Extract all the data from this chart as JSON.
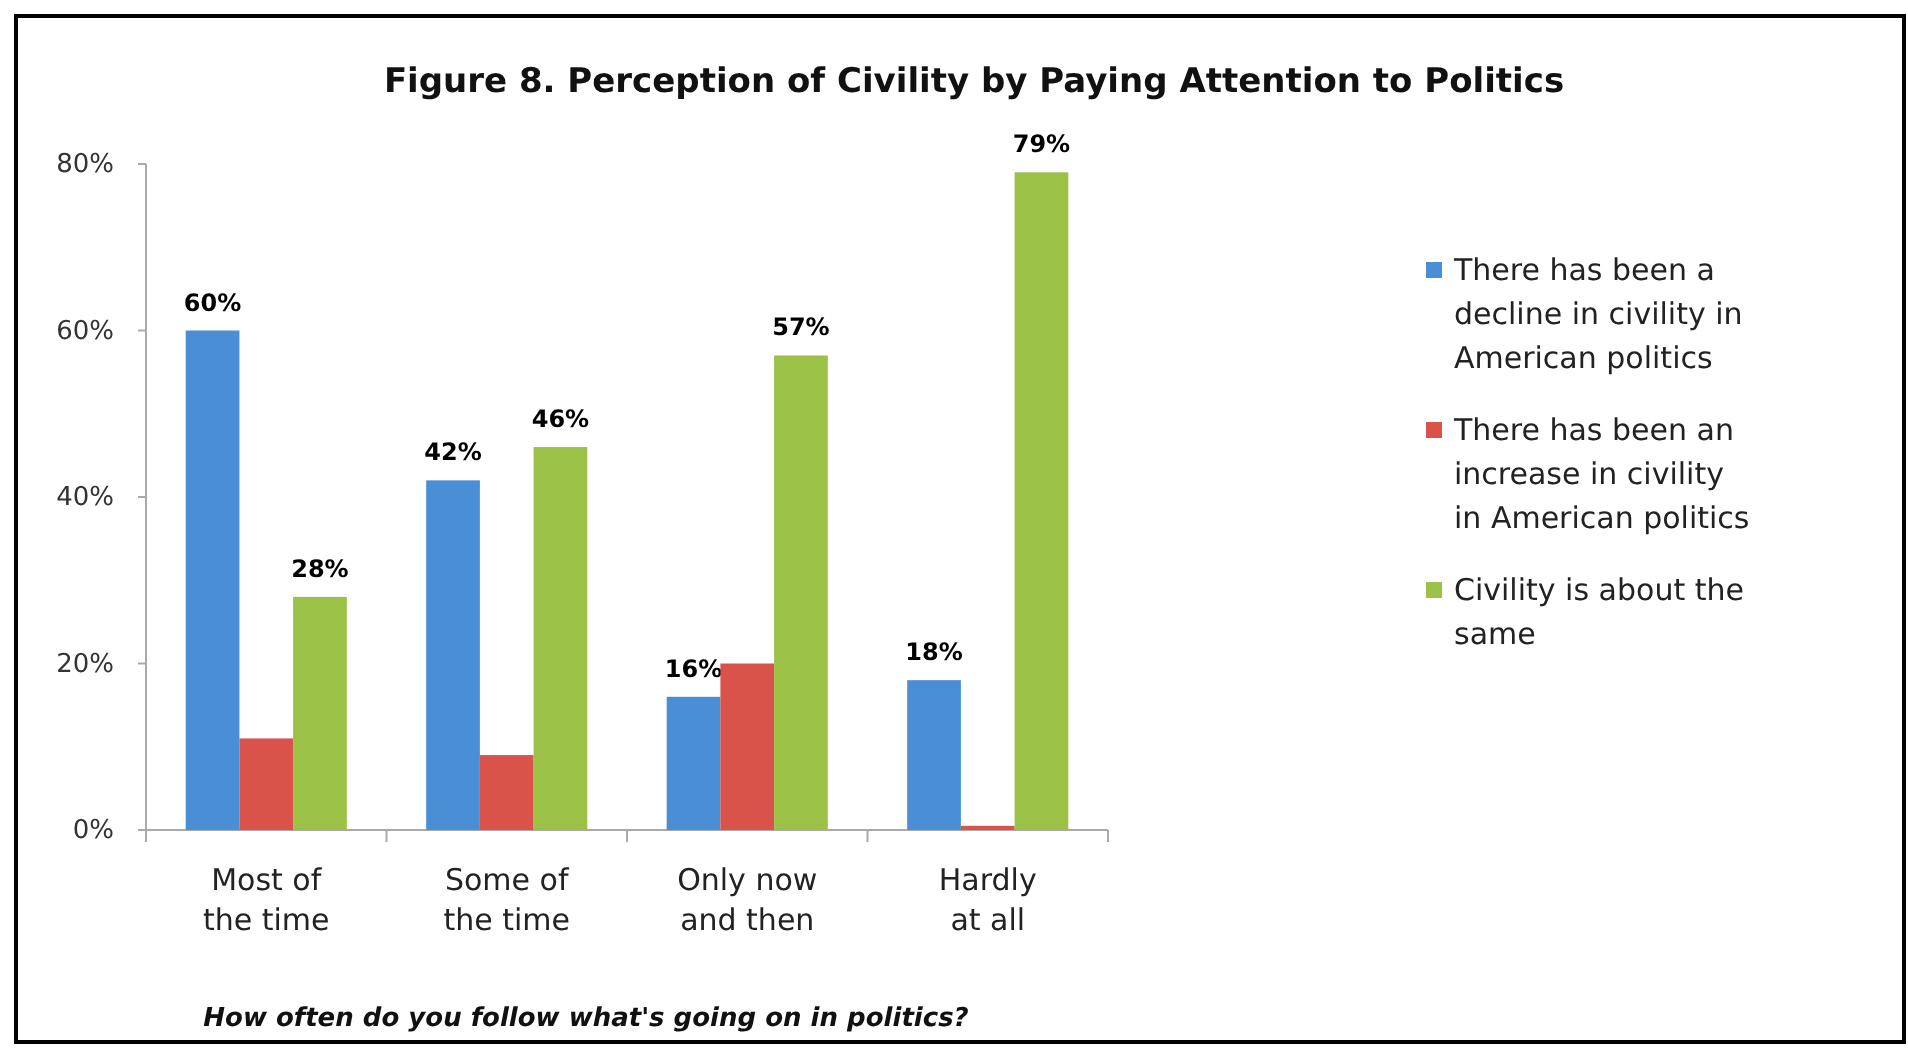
{
  "chart_data": {
    "type": "bar",
    "title": "Figure 8. Perception of Civility by Paying Attention to Politics",
    "xlabel": "How often do you follow what's going on in politics?",
    "categories": [
      "Most of\nthe time",
      "Some of\nthe time",
      "Only now\nand then",
      "Hardly\nat all"
    ],
    "series": [
      {
        "name": "There has been a decline in civility in American politics",
        "color": "#4a8fd6",
        "values": [
          60,
          42,
          16,
          18
        ],
        "value_labels": [
          "60%",
          "42%",
          "16%",
          "18%"
        ]
      },
      {
        "name": "There has been an increase in civility in American politics",
        "color": "#d9534a",
        "values": [
          11,
          9,
          20,
          0.5
        ]
      },
      {
        "name": "Civility is about the same",
        "color": "#9bc247",
        "values": [
          28,
          46,
          57,
          79
        ],
        "value_labels": [
          "28%",
          "46%",
          "57%",
          "79%"
        ]
      }
    ],
    "ylim": [
      0,
      80
    ],
    "yticks": [
      {
        "value": 0,
        "label": "0%"
      },
      {
        "value": 20,
        "label": "20%"
      },
      {
        "value": 40,
        "label": "40%"
      },
      {
        "value": 60,
        "label": "60%"
      },
      {
        "value": 80,
        "label": "80%"
      }
    ],
    "grid": false,
    "legend": "right"
  }
}
